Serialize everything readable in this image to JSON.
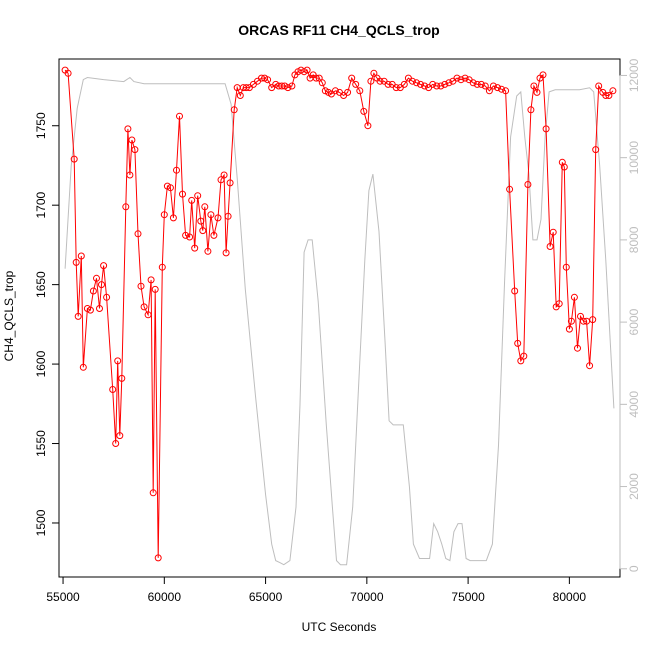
{
  "chart_data": {
    "type": "line",
    "title": "ORCAS RF11 CH4_QCLS_trop",
    "xlabel": "UTC Seconds",
    "ylabel": "CH4_QCLS_trop",
    "xlim": [
      54800,
      82500
    ],
    "ylim": [
      1466,
      1792
    ],
    "y2lim": [
      -200,
      12400
    ],
    "x_ticks": [
      55000,
      60000,
      65000,
      70000,
      75000,
      80000
    ],
    "y_ticks": [
      1500,
      1550,
      1600,
      1650,
      1700,
      1750
    ],
    "y2_ticks": [
      0,
      2000,
      4000,
      6000,
      8000,
      10000,
      12000
    ],
    "colors": {
      "series": "#ff0000",
      "altitude": "#bebebe",
      "axes": "#000000",
      "right_axis": "#bebebe"
    },
    "series": [
      {
        "style": "line-with-open-circles",
        "x": [
          55100,
          55250,
          55550,
          55650,
          55750,
          55900,
          56000,
          56200,
          56350,
          56500,
          56650,
          56800,
          56900,
          57000,
          57150,
          57450,
          57600,
          57700,
          57800,
          57900,
          58100,
          58200,
          58300,
          58400,
          58550,
          58700,
          58850,
          59000,
          59200,
          59350,
          59450,
          59550,
          59700,
          59900,
          60000,
          60150,
          60300,
          60450,
          60600,
          60750,
          60900,
          61050,
          61250,
          61350,
          61500,
          61650,
          61800,
          61900,
          62000,
          62150,
          62300,
          62450,
          62650,
          62800,
          62950,
          63050,
          63150,
          63250,
          63450,
          63600,
          63750,
          63900,
          64050,
          64200,
          64400,
          64600,
          64800,
          64950,
          65100,
          65300,
          65500,
          65650,
          65800,
          65950,
          66100,
          66300,
          66450,
          66600,
          66750,
          66900,
          67050,
          67200,
          67350,
          67500,
          67650,
          67800,
          67950,
          68100,
          68250,
          68450,
          68650,
          68850,
          69050,
          69250,
          69450,
          69650,
          69850,
          70050,
          70200,
          70350,
          70500,
          70650,
          70850,
          71050,
          71250,
          71450,
          71650,
          71850,
          72050,
          72250,
          72450,
          72650,
          72850,
          73050,
          73250,
          73450,
          73650,
          73850,
          74050,
          74250,
          74450,
          74650,
          74850,
          75050,
          75250,
          75450,
          75650,
          75850,
          76050,
          76250,
          76450,
          76650,
          76850,
          77050,
          77300,
          77450,
          77600,
          77750,
          77950,
          78100,
          78250,
          78400,
          78550,
          78700,
          78850,
          79050,
          79200,
          79350,
          79500,
          79650,
          79750,
          79850,
          80000,
          80100,
          80250,
          80400,
          80550,
          80700,
          80850,
          81000,
          81150,
          81300,
          81450,
          81650,
          81800,
          81950,
          82150
        ],
        "values": [
          1785,
          1783,
          1729,
          1664,
          1630,
          1668,
          1598,
          1635,
          1634,
          1646,
          1654,
          1635,
          1650,
          1662,
          1642,
          1584,
          1550,
          1602,
          1555,
          1591,
          1699,
          1748,
          1719,
          1741,
          1735,
          1682,
          1649,
          1636,
          1631,
          1653,
          1519,
          1647,
          1478,
          1661,
          1694,
          1712,
          1711,
          1692,
          1722,
          1756,
          1707,
          1681,
          1680,
          1703,
          1673,
          1706,
          1690,
          1684,
          1699,
          1671,
          1694,
          1681,
          1692,
          1716,
          1719,
          1670,
          1693,
          1714,
          1760,
          1774,
          1769,
          1774,
          1774,
          1774,
          1776,
          1778,
          1780,
          1780,
          1779,
          1774,
          1776,
          1775,
          1775,
          1775,
          1774,
          1775,
          1782,
          1784,
          1785,
          1784,
          1785,
          1780,
          1782,
          1780,
          1780,
          1777,
          1772,
          1771,
          1770,
          1772,
          1771,
          1769,
          1771,
          1780,
          1776,
          1772,
          1759,
          1750,
          1778,
          1783,
          1780,
          1778,
          1778,
          1776,
          1776,
          1774,
          1774,
          1776,
          1780,
          1778,
          1777,
          1776,
          1775,
          1774,
          1776,
          1775,
          1775,
          1776,
          1777,
          1778,
          1780,
          1779,
          1780,
          1779,
          1777,
          1776,
          1776,
          1775,
          1772,
          1775,
          1774,
          1773,
          1772,
          1710,
          1646,
          1613,
          1602,
          1605,
          1713,
          1760,
          1775,
          1771,
          1780,
          1782,
          1748,
          1674,
          1683,
          1636,
          1638,
          1727,
          1724,
          1661,
          1622,
          1627,
          1642,
          1610,
          1630,
          1627,
          1627,
          1599,
          1628,
          1735,
          1775,
          1771,
          1769,
          1769,
          1772
        ]
      }
    ],
    "altitude_series": {
      "x": [
        55100,
        55400,
        55700,
        56000,
        56200,
        57000,
        58000,
        58300,
        58500,
        59000,
        60000,
        61000,
        62000,
        63000,
        63300,
        63600,
        64000,
        64500,
        65000,
        65300,
        65500,
        65700,
        65900,
        66200,
        66500,
        66700,
        66900,
        67100,
        67300,
        67600,
        68000,
        68300,
        68500,
        68700,
        69000,
        69300,
        69600,
        69900,
        70100,
        70300,
        70600,
        70900,
        71100,
        71300,
        71500,
        71800,
        72100,
        72300,
        72600,
        72900,
        73100,
        73300,
        73500,
        73700,
        73900,
        74100,
        74300,
        74500,
        74700,
        74900,
        75100,
        75300,
        75500,
        75700,
        75900,
        76200,
        76500,
        76800,
        77100,
        77400,
        77600,
        77800,
        78000,
        78200,
        78400,
        78600,
        78800,
        79000,
        79300,
        79600,
        80000,
        80500,
        81000,
        81200,
        81500,
        81800,
        82200
      ],
      "values": [
        7300,
        9800,
        11200,
        11900,
        11950,
        11900,
        11850,
        11950,
        11850,
        11800,
        11800,
        11800,
        11800,
        11800,
        11300,
        9500,
        6800,
        4200,
        1800,
        600,
        200,
        150,
        100,
        200,
        1500,
        4000,
        7700,
        8000,
        8000,
        6500,
        3500,
        1500,
        200,
        100,
        100,
        1500,
        4500,
        7500,
        9200,
        9600,
        8200,
        5500,
        3600,
        3500,
        3500,
        3500,
        2000,
        600,
        250,
        250,
        250,
        1100,
        900,
        600,
        250,
        200,
        900,
        1100,
        1100,
        250,
        200,
        200,
        200,
        200,
        200,
        600,
        3000,
        7000,
        10500,
        11500,
        11600,
        10500,
        9600,
        8000,
        8000,
        8500,
        10500,
        11600,
        11650,
        11650,
        11650,
        11650,
        11700,
        11600,
        9800,
        7500,
        3900
      ]
    }
  }
}
